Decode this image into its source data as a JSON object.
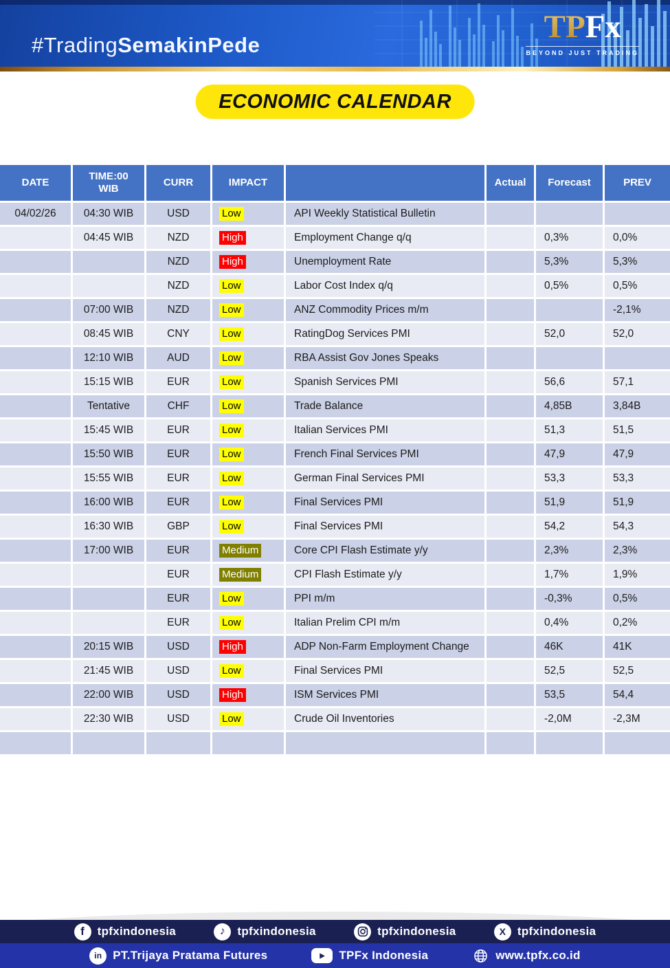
{
  "banner": {
    "hashtag_light": "#Trading",
    "hashtag_bold": "SemakinPede",
    "logo_tp": "TP",
    "logo_fx": "Fx",
    "logo_tagline": "BEYOND JUST TRADING"
  },
  "title": {
    "label": "ECONOMIC CALENDAR"
  },
  "colors": {
    "table_header_blue": "#4472C4",
    "row_dark": "#CBD1E6",
    "row_light": "#E9EBF4",
    "title_yellow": "#FFE60A",
    "gold_accent": "#E8B84D",
    "footer_navy": "#1A2052",
    "footer_blue": "#2433A8"
  },
  "table": {
    "headers": {
      "date": "DATE",
      "time": "TIME:00\nWIB",
      "curr": "CURR",
      "impact": "IMPACT",
      "event": "",
      "actual": "Actual",
      "forecast": "Forecast",
      "prev": "PREV"
    },
    "impact_styles": {
      "Low": {
        "bg": "#FFFF00",
        "text": "#000000"
      },
      "Medium": {
        "bg": "#7F7F00",
        "text": "#FFFFFF"
      },
      "High": {
        "bg": "#FF0000",
        "text": "#FFFFFF"
      }
    },
    "rows": [
      {
        "date": "04/02/26",
        "time": "04:30 WIB",
        "curr": "USD",
        "impact": "Low",
        "event": "API Weekly Statistical Bulletin",
        "actual": "",
        "forecast": "",
        "prev": ""
      },
      {
        "date": "",
        "time": "04:45 WIB",
        "curr": "NZD",
        "impact": "High",
        "event": "Employment Change q/q",
        "actual": "",
        "forecast": "0,3%",
        "prev": "0,0%"
      },
      {
        "date": "",
        "time": "",
        "curr": "NZD",
        "impact": "High",
        "event": "Unemployment Rate",
        "actual": "",
        "forecast": "5,3%",
        "prev": "5,3%"
      },
      {
        "date": "",
        "time": "",
        "curr": "NZD",
        "impact": "Low",
        "event": "Labor Cost Index q/q",
        "actual": "",
        "forecast": "0,5%",
        "prev": "0,5%"
      },
      {
        "date": "",
        "time": "07:00 WIB",
        "curr": "NZD",
        "impact": "Low",
        "event": "ANZ Commodity Prices m/m",
        "actual": "",
        "forecast": "",
        "prev": "-2,1%"
      },
      {
        "date": "",
        "time": "08:45 WIB",
        "curr": "CNY",
        "impact": "Low",
        "event": "RatingDog Services PMI",
        "actual": "",
        "forecast": "52,0",
        "prev": "52,0"
      },
      {
        "date": "",
        "time": "12:10 WIB",
        "curr": "AUD",
        "impact": "Low",
        "event": "RBA Assist Gov Jones Speaks",
        "actual": "",
        "forecast": "",
        "prev": ""
      },
      {
        "date": "",
        "time": "15:15 WIB",
        "curr": "EUR",
        "impact": "Low",
        "event": "Spanish Services PMI",
        "actual": "",
        "forecast": "56,6",
        "prev": "57,1"
      },
      {
        "date": "",
        "time": "Tentative",
        "curr": "CHF",
        "impact": "Low",
        "event": "Trade Balance",
        "actual": "",
        "forecast": "4,85B",
        "prev": "3,84B"
      },
      {
        "date": "",
        "time": "15:45 WIB",
        "curr": "EUR",
        "impact": "Low",
        "event": "Italian Services PMI",
        "actual": "",
        "forecast": "51,3",
        "prev": "51,5"
      },
      {
        "date": "",
        "time": "15:50 WIB",
        "curr": "EUR",
        "impact": "Low",
        "event": "French Final Services PMI",
        "actual": "",
        "forecast": "47,9",
        "prev": "47,9"
      },
      {
        "date": "",
        "time": "15:55 WIB",
        "curr": "EUR",
        "impact": "Low",
        "event": "German Final Services PMI",
        "actual": "",
        "forecast": "53,3",
        "prev": "53,3"
      },
      {
        "date": "",
        "time": "16:00 WIB",
        "curr": "EUR",
        "impact": "Low",
        "event": "Final Services PMI",
        "actual": "",
        "forecast": "51,9",
        "prev": "51,9"
      },
      {
        "date": "",
        "time": "16:30 WIB",
        "curr": "GBP",
        "impact": "Low",
        "event": "Final Services PMI",
        "actual": "",
        "forecast": "54,2",
        "prev": "54,3"
      },
      {
        "date": "",
        "time": "17:00 WIB",
        "curr": "EUR",
        "impact": "Medium",
        "event": "Core CPI Flash Estimate y/y",
        "actual": "",
        "forecast": "2,3%",
        "prev": "2,3%"
      },
      {
        "date": "",
        "time": "",
        "curr": "EUR",
        "impact": "Medium",
        "event": "CPI Flash Estimate y/y",
        "actual": "",
        "forecast": "1,7%",
        "prev": "1,9%"
      },
      {
        "date": "",
        "time": "",
        "curr": "EUR",
        "impact": "Low",
        "event": "PPI m/m",
        "actual": "",
        "forecast": "-0,3%",
        "prev": "0,5%"
      },
      {
        "date": "",
        "time": "",
        "curr": "EUR",
        "impact": "Low",
        "event": "Italian Prelim CPI m/m",
        "actual": "",
        "forecast": "0,4%",
        "prev": "0,2%"
      },
      {
        "date": "",
        "time": "20:15 WIB",
        "curr": "USD",
        "impact": "High",
        "event": "ADP Non-Farm Employment Change",
        "actual": "",
        "forecast": "46K",
        "prev": "41K"
      },
      {
        "date": "",
        "time": "21:45 WIB",
        "curr": "USD",
        "impact": "Low",
        "event": "Final Services PMI",
        "actual": "",
        "forecast": "52,5",
        "prev": "52,5"
      },
      {
        "date": "",
        "time": "22:00 WIB",
        "curr": "USD",
        "impact": "High",
        "event": "ISM Services PMI",
        "actual": "",
        "forecast": "53,5",
        "prev": "54,4"
      },
      {
        "date": "",
        "time": "22:30 WIB",
        "curr": "USD",
        "impact": "Low",
        "event": "Crude Oil Inventories",
        "actual": "",
        "forecast": "-2,0M",
        "prev": "-2,3M"
      },
      {
        "date": "",
        "time": "",
        "curr": "",
        "impact": "",
        "event": "",
        "actual": "",
        "forecast": "",
        "prev": ""
      }
    ]
  },
  "footer": {
    "social_row": [
      {
        "icon": "facebook-icon",
        "label": "tpfxindonesia"
      },
      {
        "icon": "tiktok-icon",
        "label": "tpfxindonesia"
      },
      {
        "icon": "instagram-icon",
        "label": "tpfxindonesia"
      },
      {
        "icon": "x-icon",
        "label": "tpfxindonesia"
      }
    ],
    "info_row": [
      {
        "icon": "linkedin-icon",
        "label": "PT.Trijaya Pratama Futures"
      },
      {
        "icon": "youtube-icon",
        "label": "TPFx Indonesia"
      },
      {
        "icon": "globe-icon",
        "label": "www.tpfx.co.id"
      }
    ]
  }
}
